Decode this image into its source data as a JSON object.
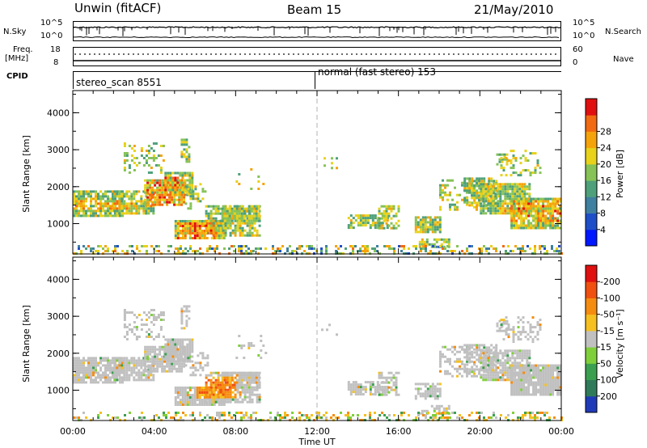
{
  "header": {
    "station": "Unwin (fitACF)",
    "beam": "Beam 15",
    "date": "21/May/2010"
  },
  "top_panels": {
    "nsky_label": "N.Sky",
    "nsky_ticks": [
      "10^5",
      "10^0"
    ],
    "nsearch_label": "N.Search",
    "nsearch_ticks": [
      "10^5",
      "10^0"
    ],
    "freq_label": "Freq.",
    "freq_unit": "[MHz]",
    "freq_ticks": [
      "18",
      "8"
    ],
    "nave_label": "Nave",
    "nave_ticks": [
      "60",
      "0"
    ],
    "cpid_label": "CPID",
    "cpid_modes": [
      {
        "name": "stereo_scan 8551",
        "start_hour": 0
      },
      {
        "name": "normal (fast stereo) 153",
        "start_hour": 12
      }
    ]
  },
  "chart_data": [
    {
      "type": "heatmap",
      "panel": "power",
      "ylabel": "Slant Range [km]",
      "ylim": [
        180,
        4600
      ],
      "yticks": [
        "1000",
        "2000",
        "3000",
        "4000"
      ],
      "xlim": [
        0,
        24
      ],
      "colorbar": {
        "label": "Power [dB]",
        "ticks": [
          "4",
          "8",
          "12",
          "16",
          "20",
          "24",
          "28"
        ],
        "colors": [
          "#0018ff",
          "#1f4fc8",
          "#3f7fa0",
          "#4ea07a",
          "#86c256",
          "#e8d21a",
          "#f5a30a",
          "#f26a12",
          "#e01010"
        ]
      }
    },
    {
      "type": "heatmap",
      "panel": "velocity",
      "ylabel": "Slant Range [km]",
      "ylim": [
        180,
        4600
      ],
      "yticks": [
        "1000",
        "2000",
        "3000",
        "4000"
      ],
      "xlim": [
        0,
        24
      ],
      "xticks": [
        "00:00",
        "04:00",
        "08:00",
        "12:00",
        "16:00",
        "20:00",
        "00:00"
      ],
      "xlabel": "Time UT",
      "colorbar": {
        "label": "Velocity [m s⁻¹]",
        "ticks": [
          "200",
          "100",
          "50",
          "15",
          "-15",
          "-50",
          "-100",
          "-200"
        ],
        "colors": [
          "#1f3ab8",
          "#2f7a58",
          "#3aa050",
          "#7fcf3a",
          "#c0c0c0",
          "#f5c020",
          "#f58c10",
          "#f05010",
          "#e01010"
        ]
      }
    }
  ]
}
